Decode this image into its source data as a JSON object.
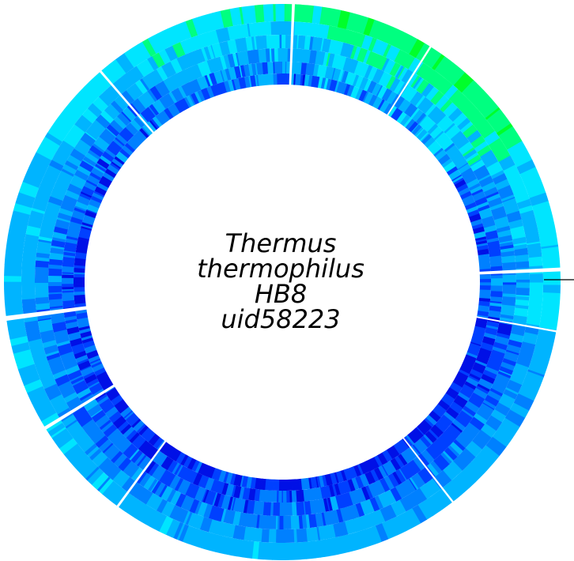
{
  "title_lines": [
    "Thermus",
    "thermophilus",
    "HB8",
    "uid58223"
  ],
  "palette": {
    "green": "#00ff2a",
    "spring_green": "#00ff80",
    "cyan": "#00e5ff",
    "sky": "#00b4ff",
    "azure": "#0080ff",
    "blue": "#0040ff",
    "deep_blue": "#0010e6",
    "background": "#ffffff",
    "marker": "#000000"
  }
}
